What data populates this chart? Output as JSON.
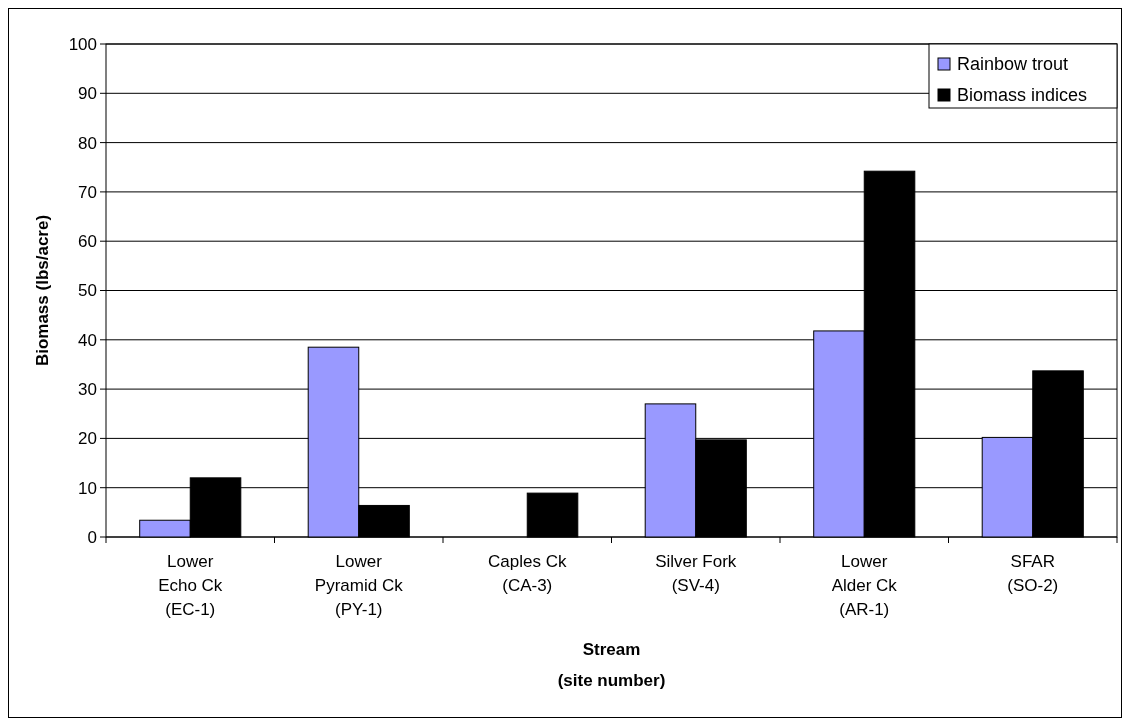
{
  "chart_data": {
    "type": "bar",
    "xlabel": "Stream\n(site number)",
    "ylabel": "Biomass (lbs/acre)",
    "categories": [
      "Lower\nEcho Ck\n(EC-1)",
      "Lower\nPyramid Ck\n(PY-1)",
      "Caples Ck\n(CA-3)",
      "Silver Fork\n(SV-4)",
      "Lower\nAlder Ck\n(AR-1)",
      "SFAR\n(SO-2)"
    ],
    "series": [
      {
        "name": "Rainbow trout",
        "color": "#9999ff",
        "values": [
          3.4,
          38.5,
          0,
          27.0,
          41.8,
          20.2
        ]
      },
      {
        "name": "Biomass indices",
        "color": "#000000",
        "values": [
          12.0,
          6.4,
          8.9,
          19.7,
          74.2,
          33.7
        ]
      }
    ],
    "ylim": [
      0,
      100
    ],
    "yticks": [
      0,
      10,
      20,
      30,
      40,
      50,
      60,
      70,
      80,
      90,
      100
    ],
    "grid": "y",
    "legend": "top right"
  }
}
